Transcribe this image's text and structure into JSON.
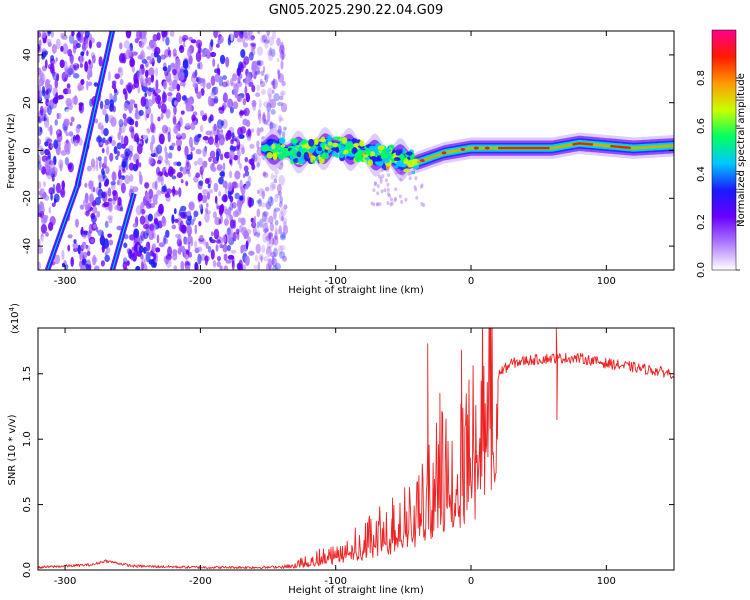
{
  "title": "GN05.2025.290.22.04.G09",
  "chart_data": [
    {
      "type": "heatmap",
      "name": "spectrogram",
      "xlabel": "Height of straight line (km)",
      "ylabel": "Frequency (Hz)",
      "xlim": [
        -320,
        150
      ],
      "ylim": [
        -50,
        50
      ],
      "xticks": [
        -300,
        -200,
        -100,
        0,
        100
      ],
      "yticks": [
        -40,
        -20,
        0,
        20,
        40
      ],
      "colorbar": {
        "label": "Normalized spectral amplitude",
        "range": [
          0,
          1
        ],
        "ticks": [
          0.0,
          0.2,
          0.4,
          0.6,
          0.8
        ],
        "colors": [
          "#ffffff",
          "#b07bff",
          "#6a00ff",
          "#1a1aff",
          "#00c8ff",
          "#00ff60",
          "#c8ff00",
          "#ff9a00",
          "#ff1a00",
          "#ff008c"
        ]
      },
      "features": {
        "noise_region_end_km": -145,
        "signal_track": {
          "heights_km": [
            -155,
            -140,
            -120,
            -100,
            -80,
            -60,
            -40,
            -20,
            0,
            20,
            40,
            60,
            80,
            100,
            120,
            150
          ],
          "freq_hz": [
            1,
            0,
            -1,
            2,
            -1,
            -3,
            -5,
            -1,
            1,
            1,
            1,
            1,
            3,
            2,
            1,
            2
          ]
        },
        "diagonal_tracks": [
          {
            "heights_km": [
              -313,
              -291,
              -277,
              -265
            ],
            "freq_hz": [
              -50,
              -15,
              20,
              50
            ]
          },
          {
            "heights_km": [
              -265,
              -249
            ],
            "freq_hz": [
              -50,
              -18
            ]
          }
        ]
      }
    },
    {
      "type": "line",
      "name": "snr",
      "xlabel": "Height of straight line (km)",
      "ylabel": "SNR (10 * v/v)",
      "y_multiplier": "(x10",
      "y_multiplier_exp": "4",
      "xlim": [
        -320,
        150
      ],
      "ylim": [
        0,
        1.85
      ],
      "xticks": [
        -300,
        -200,
        -100,
        0,
        100
      ],
      "yticks": [
        0.0,
        0.5,
        1.0,
        1.5
      ],
      "color": "#ee2222",
      "envelope": {
        "x": [
          -320,
          -280,
          -270,
          -250,
          -200,
          -150,
          -135,
          -120,
          -100,
          -80,
          -60,
          -40,
          -30,
          -20,
          -10,
          0,
          10,
          20,
          30,
          40,
          60,
          80,
          100,
          120,
          150
        ],
        "y": [
          0.02,
          0.04,
          0.07,
          0.03,
          0.02,
          0.02,
          0.03,
          0.08,
          0.15,
          0.25,
          0.35,
          0.5,
          0.65,
          0.85,
          1.05,
          1.2,
          1.4,
          1.5,
          1.58,
          1.6,
          1.62,
          1.62,
          1.58,
          1.55,
          1.5
        ]
      },
      "spikes": [
        {
          "x": -58,
          "y": 0.55
        },
        {
          "x": -32,
          "y": 1.73
        },
        {
          "x": -23,
          "y": 1.35
        },
        {
          "x": -7,
          "y": 1.68
        },
        {
          "x": 63,
          "y": 1.85
        },
        {
          "x": 63.5,
          "y": 1.15
        }
      ]
    }
  ]
}
